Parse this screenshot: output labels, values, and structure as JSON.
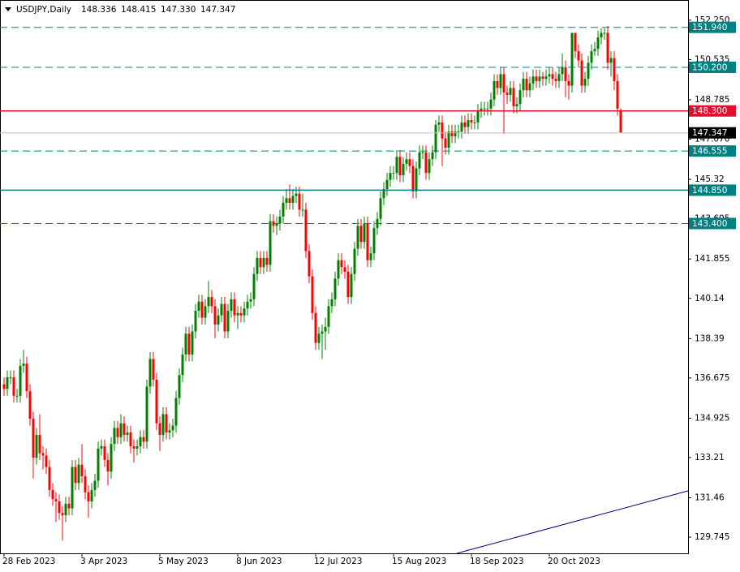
{
  "chart_data": {
    "type": "candlestick",
    "title": "USDJPY,Daily",
    "header_values": [
      "148.336",
      "148.415",
      "147.330",
      "147.347"
    ],
    "ylim": [
      129.04,
      153.13
    ],
    "yticks": [
      {
        "value": 152.25,
        "label": "152.250"
      },
      {
        "value": 150.535,
        "label": "150.535"
      },
      148.785,
      {
        "value": 147.07,
        "label": "147.070"
      },
      145.32,
      143.605,
      141.855,
      140.14,
      138.39,
      136.675,
      134.925,
      133.21,
      131.46,
      129.745
    ],
    "up_color": "#008000",
    "down_color": "#ff0000",
    "categories": [
      "28 Feb 2023",
      null,
      null,
      null,
      null,
      null,
      null,
      null,
      null,
      null,
      null,
      null,
      null,
      null,
      null,
      null,
      null,
      null,
      null,
      null,
      null,
      null,
      null,
      null,
      "3 Apr 2023",
      null,
      null,
      null,
      null,
      null,
      null,
      null,
      null,
      null,
      null,
      null,
      null,
      null,
      null,
      null,
      null,
      null,
      null,
      null,
      null,
      null,
      null,
      null,
      "5 May 2023",
      null,
      null,
      null,
      null,
      null,
      null,
      null,
      null,
      null,
      null,
      null,
      null,
      null,
      null,
      null,
      null,
      null,
      null,
      null,
      null,
      null,
      null,
      null,
      "8 Jun 2023",
      null,
      null,
      null,
      null,
      null,
      null,
      null,
      null,
      null,
      null,
      null,
      null,
      null,
      null,
      null,
      null,
      null,
      null,
      null,
      null,
      null,
      null,
      null,
      "12 Jul 2023",
      null,
      null,
      null,
      null,
      null,
      null,
      null,
      null,
      null,
      null,
      null,
      null,
      null,
      null,
      null,
      null,
      null,
      null,
      null,
      null,
      null,
      null,
      null,
      "15 Aug 2023",
      null,
      null,
      null,
      null,
      null,
      null,
      null,
      null,
      null,
      null,
      null,
      null,
      null,
      null,
      null,
      null,
      null,
      null,
      null,
      null,
      null,
      null,
      null,
      "18 Sep 2023",
      null,
      null,
      null,
      null,
      null,
      null,
      null,
      null,
      null,
      null,
      null,
      null,
      null,
      null,
      null,
      null,
      null,
      null,
      null,
      null,
      null,
      null,
      null,
      "20 Oct 2023",
      null,
      null,
      null,
      null,
      null,
      null,
      null,
      null,
      null,
      null,
      null,
      null,
      null,
      null,
      null,
      null,
      null,
      null,
      null,
      null,
      null,
      null
    ],
    "open": [
      136.4,
      136.2,
      136.7,
      136.7,
      135.9,
      135.9,
      137.2,
      137.3,
      136.1,
      134.9,
      133.2,
      134.2,
      133.4,
      133.3,
      132.8,
      131.8,
      131.4,
      131.3,
      130.8,
      130.7,
      131.2,
      131.0,
      132.8,
      132.1,
      132.9,
      132.4,
      131.7,
      131.3,
      131.8,
      132.2,
      133.6,
      133.7,
      133.1,
      132.6,
      133.8,
      134.5,
      134.1,
      134.7,
      134.2,
      134.3,
      133.7,
      133.6,
      133.7,
      134.1,
      133.9,
      136.3,
      137.5,
      136.6,
      134.7,
      134.2,
      135.1,
      134.3,
      134.4,
      134.6,
      135.8,
      136.8,
      137.7,
      138.6,
      137.7,
      138.7,
      139.6,
      140.0,
      139.3,
      139.8,
      140.2,
      139.8,
      139.0,
      139.4,
      139.9,
      138.7,
      139.6,
      140.1,
      139.4,
      139.5,
      139.4,
      139.7,
      140.0,
      140.1,
      141.2,
      141.9,
      141.5,
      141.9,
      141.6,
      143.5,
      143.3,
      143.4,
      143.7,
      144.3,
      144.5,
      144.3,
      144.6,
      144.7,
      144.0,
      144.0,
      142.2,
      141.1,
      139.5,
      138.2,
      138.6,
      138.7,
      138.9,
      139.8,
      140.1,
      141.0,
      141.8,
      141.5,
      141.3,
      140.2,
      141.2,
      142.3,
      143.3,
      142.6,
      143.4,
      141.8,
      142.1,
      143.2,
      143.6,
      144.5,
      144.9,
      145.3,
      145.6,
      145.6,
      146.3,
      145.5,
      146.0,
      146.2,
      145.9,
      144.8,
      145.8,
      146.5,
      146.5,
      145.6,
      146.2,
      146.5,
      147.7,
      147.8,
      147.1,
      146.7,
      147.4,
      147.2,
      147.4,
      147.4,
      147.8,
      147.6,
      147.9,
      147.8,
      147.8,
      148.3,
      148.4,
      148.4,
      148.4,
      148.8,
      149.6,
      149.3,
      149.9,
      149.1,
      149.0,
      149.3,
      148.5,
      148.6,
      149.2,
      149.7,
      149.2,
      149.5,
      149.8,
      149.6,
      149.8,
      149.7,
      149.8,
      149.9,
      149.7,
      149.6,
      149.9,
      150.2,
      149.6,
      149.4,
      151.7,
      150.9,
      150.5,
      149.4,
      149.7,
      150.4,
      150.9,
      151.0,
      151.5,
      151.7,
      151.7,
      150.4,
      150.6,
      149.6,
      148.336
    ],
    "high": [
      136.7,
      137.0,
      137.0,
      137.0,
      136.2,
      137.5,
      137.9,
      137.6,
      136.4,
      135.2,
      134.5,
      135.1,
      133.7,
      133.6,
      133.1,
      132.1,
      131.7,
      131.6,
      131.1,
      131.5,
      131.5,
      133.1,
      133.1,
      133.2,
      133.8,
      132.7,
      132.0,
      132.1,
      132.5,
      133.9,
      134.0,
      134.0,
      133.4,
      134.1,
      134.8,
      134.8,
      135.1,
      135.0,
      134.6,
      134.6,
      134.0,
      134.0,
      134.4,
      134.4,
      136.6,
      137.8,
      137.8,
      136.9,
      135.0,
      135.4,
      135.4,
      134.7,
      134.9,
      136.1,
      137.1,
      138.0,
      138.9,
      138.9,
      139.0,
      139.9,
      140.3,
      140.3,
      140.1,
      140.9,
      140.5,
      140.1,
      139.7,
      140.2,
      140.2,
      139.9,
      140.4,
      140.4,
      139.8,
      139.8,
      140.0,
      140.3,
      140.4,
      141.5,
      142.2,
      142.2,
      142.2,
      142.2,
      143.8,
      143.8,
      143.7,
      144.0,
      144.6,
      144.9,
      145.1,
      144.9,
      145.0,
      145.0,
      144.7,
      144.3,
      142.5,
      141.4,
      139.8,
      138.9,
      139.0,
      139.3,
      140.1,
      140.4,
      141.3,
      142.1,
      142.1,
      141.8,
      141.6,
      141.5,
      142.6,
      143.6,
      143.6,
      143.7,
      143.7,
      142.4,
      143.5,
      143.9,
      144.8,
      145.2,
      145.6,
      145.9,
      145.9,
      146.6,
      146.6,
      146.3,
      146.5,
      146.5,
      146.2,
      146.1,
      146.8,
      146.8,
      146.8,
      146.5,
      146.8,
      147.9,
      148.1,
      148.1,
      147.4,
      147.7,
      147.7,
      147.7,
      147.7,
      148.1,
      148.1,
      148.2,
      148.2,
      148.1,
      148.6,
      148.7,
      148.7,
      148.7,
      149.1,
      149.9,
      149.9,
      150.2,
      150.2,
      149.4,
      149.6,
      149.6,
      148.9,
      149.5,
      150.0,
      150.0,
      149.8,
      150.1,
      150.1,
      150.1,
      150.0,
      150.1,
      150.2,
      150.2,
      150.0,
      150.2,
      150.8,
      150.5,
      149.9,
      151.7,
      151.7,
      151.2,
      150.8,
      150.0,
      150.7,
      151.2,
      151.3,
      151.8,
      151.9,
      151.9,
      152.0,
      150.9,
      150.9,
      149.9,
      148.415
    ],
    "low": [
      135.9,
      135.9,
      136.4,
      135.6,
      135.6,
      135.6,
      136.9,
      135.8,
      134.6,
      132.3,
      132.9,
      133.1,
      132.7,
      132.5,
      131.5,
      131.1,
      130.4,
      130.5,
      129.6,
      130.4,
      130.7,
      130.7,
      131.8,
      131.8,
      132.1,
      131.4,
      130.6,
      131.0,
      131.5,
      131.9,
      133.3,
      132.8,
      132.0,
      132.3,
      133.5,
      133.8,
      133.8,
      133.9,
      133.9,
      133.4,
      133.0,
      133.3,
      133.4,
      133.6,
      133.6,
      136.0,
      136.3,
      134.4,
      133.5,
      133.9,
      134.0,
      134.0,
      134.1,
      134.3,
      135.5,
      136.5,
      137.4,
      137.4,
      137.4,
      138.4,
      139.3,
      139.0,
      139.0,
      139.5,
      139.5,
      138.4,
      138.7,
      139.1,
      138.4,
      138.4,
      139.3,
      139.1,
      138.8,
      139.1,
      139.1,
      139.4,
      139.7,
      139.8,
      140.9,
      141.2,
      141.2,
      141.3,
      141.3,
      143.0,
      142.9,
      143.1,
      143.4,
      144.0,
      144.0,
      144.0,
      144.3,
      143.7,
      143.7,
      141.9,
      140.8,
      139.2,
      137.9,
      137.9,
      137.5,
      137.9,
      138.6,
      139.5,
      139.8,
      140.7,
      141.2,
      141.0,
      139.9,
      139.9,
      140.9,
      142.0,
      142.3,
      142.3,
      141.5,
      141.5,
      141.8,
      142.9,
      143.3,
      144.2,
      144.6,
      145.0,
      145.3,
      145.3,
      145.2,
      145.2,
      145.7,
      145.6,
      144.5,
      144.5,
      145.5,
      146.2,
      145.3,
      145.3,
      145.9,
      146.2,
      147.4,
      145.9,
      146.4,
      146.4,
      146.9,
      146.9,
      147.1,
      147.1,
      147.3,
      147.3,
      147.5,
      147.5,
      147.5,
      148.0,
      148.1,
      148.1,
      148.1,
      148.5,
      149.0,
      149.0,
      147.3,
      148.6,
      148.7,
      148.2,
      148.2,
      148.3,
      148.9,
      148.9,
      148.9,
      149.2,
      149.3,
      149.3,
      149.4,
      149.4,
      149.5,
      149.4,
      149.3,
      149.3,
      149.6,
      148.9,
      148.8,
      149.1,
      150.6,
      150.2,
      149.1,
      149.1,
      149.4,
      150.1,
      150.7,
      150.7,
      151.2,
      151.4,
      150.1,
      149.8,
      149.2,
      148.1,
      147.33
    ],
    "close": [
      136.2,
      136.7,
      136.7,
      135.9,
      135.9,
      137.2,
      137.3,
      136.1,
      134.9,
      133.2,
      134.2,
      133.4,
      133.3,
      132.8,
      131.8,
      131.4,
      131.3,
      130.8,
      130.7,
      131.2,
      131.0,
      132.8,
      132.1,
      132.9,
      132.4,
      131.7,
      131.3,
      131.8,
      132.2,
      133.6,
      133.7,
      133.1,
      132.6,
      133.8,
      134.5,
      134.1,
      134.7,
      134.2,
      134.3,
      133.7,
      133.6,
      133.7,
      134.1,
      133.9,
      136.3,
      137.5,
      136.6,
      134.7,
      134.2,
      135.1,
      134.3,
      134.4,
      134.6,
      135.8,
      136.8,
      137.7,
      138.6,
      137.7,
      138.7,
      139.6,
      140.0,
      139.3,
      139.8,
      140.2,
      139.8,
      139.0,
      139.4,
      139.9,
      138.7,
      139.6,
      140.1,
      139.4,
      139.5,
      139.4,
      139.7,
      140.0,
      140.1,
      141.2,
      141.9,
      141.5,
      141.9,
      141.6,
      143.5,
      143.3,
      143.4,
      143.7,
      144.3,
      144.5,
      144.3,
      144.6,
      144.7,
      144.0,
      144.0,
      142.2,
      141.1,
      139.5,
      138.2,
      138.6,
      138.7,
      138.9,
      139.8,
      140.1,
      141.0,
      141.8,
      141.5,
      141.3,
      140.2,
      141.2,
      142.3,
      143.3,
      142.6,
      143.4,
      141.8,
      142.1,
      143.2,
      143.6,
      144.5,
      144.9,
      145.3,
      145.6,
      145.6,
      146.3,
      145.5,
      146.0,
      146.2,
      145.9,
      144.8,
      145.8,
      146.5,
      146.5,
      145.6,
      146.2,
      146.5,
      147.7,
      147.8,
      147.1,
      146.7,
      147.4,
      147.2,
      147.4,
      147.4,
      147.8,
      147.6,
      147.9,
      147.8,
      147.8,
      148.3,
      148.4,
      148.4,
      148.4,
      148.8,
      149.6,
      149.3,
      149.9,
      149.1,
      149.0,
      149.3,
      148.5,
      148.6,
      149.2,
      149.7,
      149.2,
      149.5,
      149.8,
      149.6,
      149.8,
      149.7,
      149.8,
      149.9,
      149.7,
      149.6,
      149.9,
      150.2,
      149.6,
      149.4,
      151.7,
      150.9,
      150.5,
      149.4,
      149.7,
      150.4,
      150.9,
      151.0,
      151.5,
      151.7,
      151.7,
      150.4,
      150.6,
      149.6,
      148.4,
      147.347
    ],
    "levels": [
      {
        "value": 151.94,
        "label": "151.940",
        "style": "dashed",
        "color": "#008080"
      },
      {
        "value": 150.2,
        "label": "150.200",
        "style": "dashed",
        "color": "#008080"
      },
      {
        "value": 148.3,
        "label": "148.300",
        "style": "solid",
        "color": "#e0102f"
      },
      {
        "value": 146.555,
        "label": "146.555",
        "style": "dashed",
        "color": "#008080"
      },
      {
        "value": 144.85,
        "label": "144.850",
        "style": "solid",
        "color": "#008080"
      },
      {
        "value": 143.4,
        "label": "143.400",
        "style": "dashed",
        "color": "#008080"
      }
    ],
    "current_price": {
      "value": 147.347,
      "label": "147.347",
      "color": "#c0c0c0"
    }
  }
}
